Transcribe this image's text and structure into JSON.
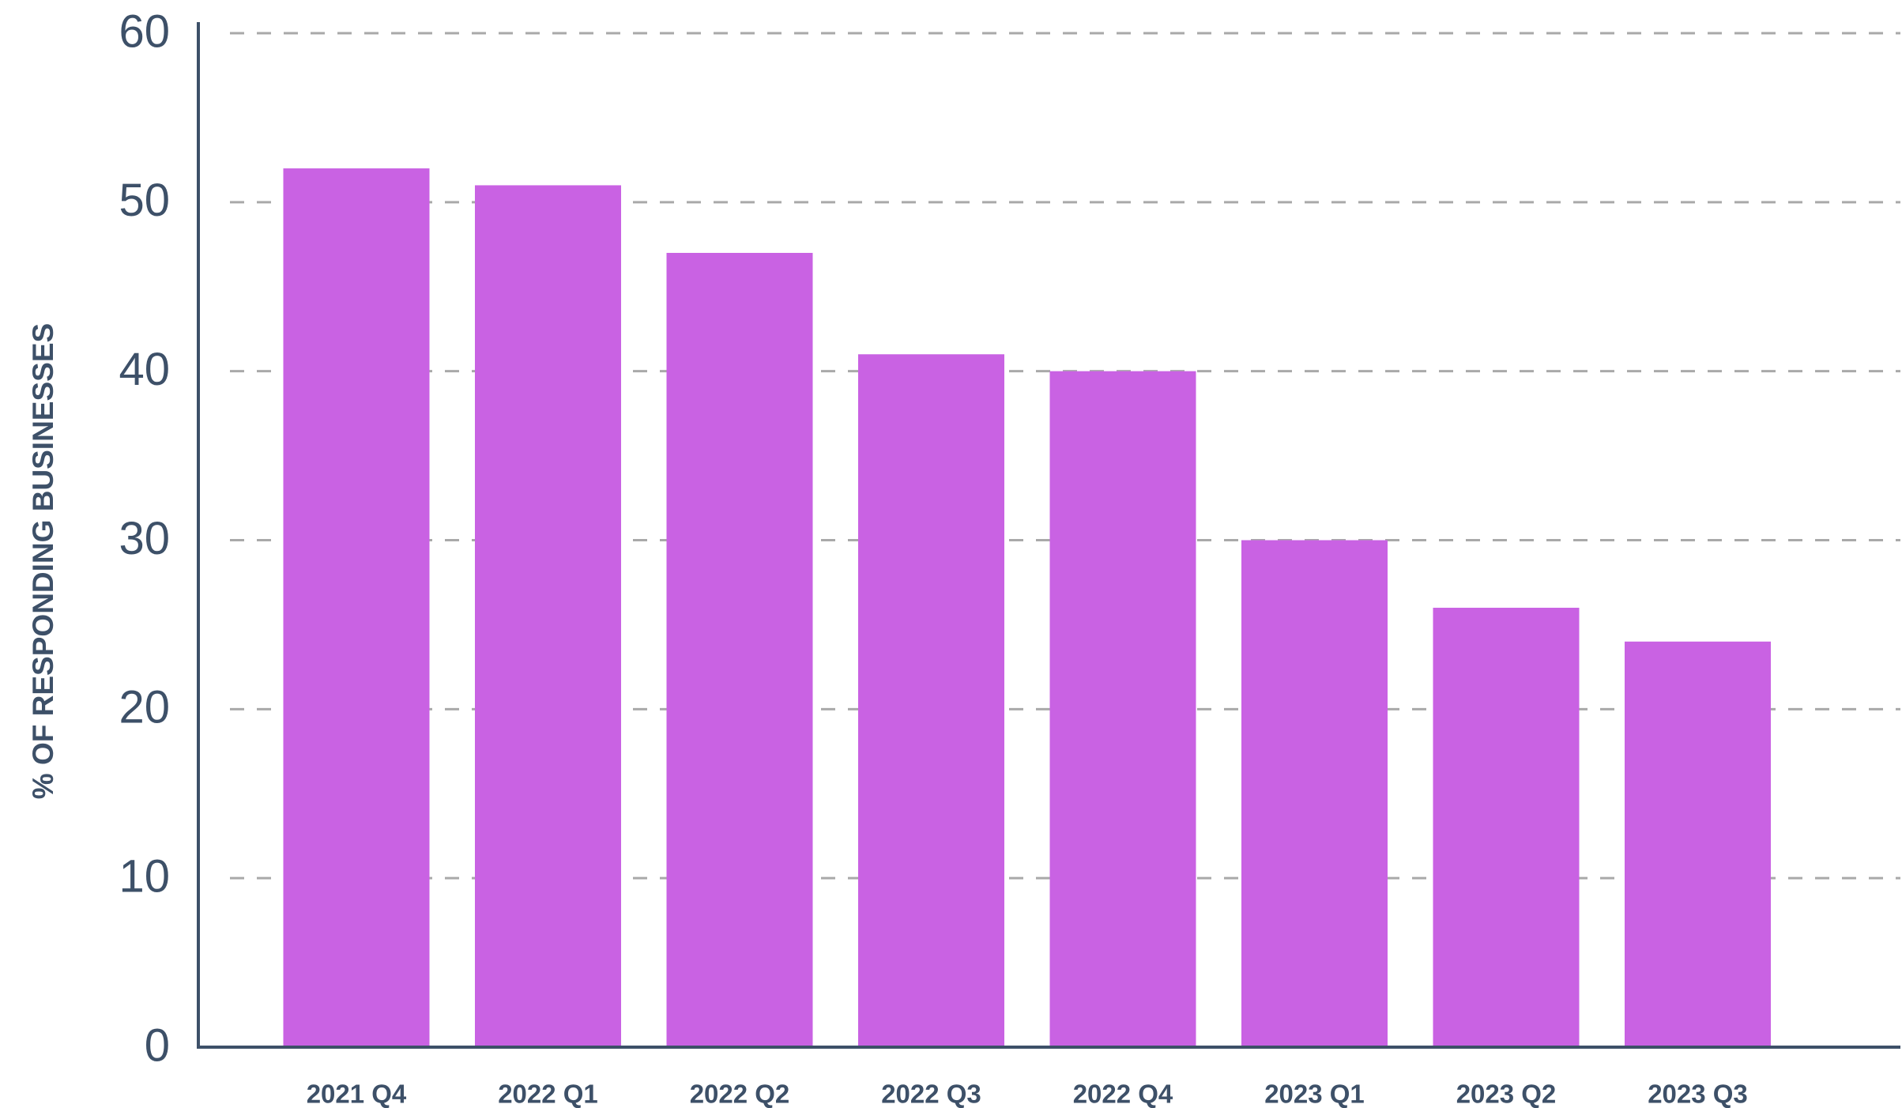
{
  "chart_data": {
    "type": "bar",
    "y_label": "% OF RESPONDING BUSINESSES",
    "categories": [
      "2021 Q4",
      "2022 Q1",
      "2022 Q2",
      "2022 Q3",
      "2022 Q4",
      "2023 Q1",
      "2023 Q2",
      "2023 Q3"
    ],
    "values": [
      52,
      51,
      47,
      41,
      40,
      30,
      26,
      24
    ],
    "color": "#c962e3",
    "ylim": [
      0,
      60
    ],
    "yticks": [
      0,
      10,
      20,
      30,
      40,
      50,
      60
    ],
    "grid": true
  }
}
